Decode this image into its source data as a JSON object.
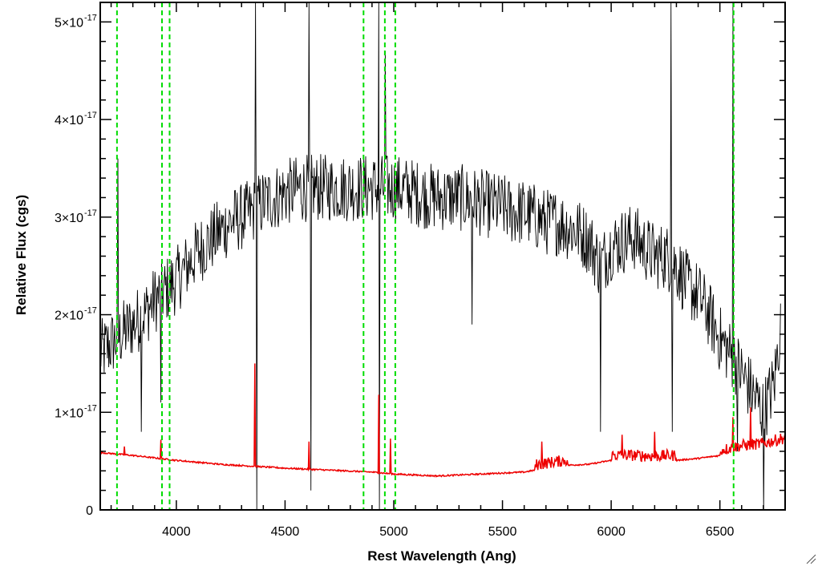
{
  "chart_data": {
    "type": "line",
    "title": "",
    "xlabel": "Rest Wavelength (Ang)",
    "ylabel": "Relative Flux (cgs)",
    "xlim": [
      3650,
      6800
    ],
    "ylim": [
      0,
      5.2e-17
    ],
    "x_ticks": [
      4000,
      4500,
      5000,
      5500,
      6000,
      6500
    ],
    "x_tick_labels": [
      "4000",
      "4500",
      "5000",
      "5500",
      "6000",
      "6500"
    ],
    "y_ticks": [
      0,
      1e-17,
      2e-17,
      3e-17,
      4e-17,
      5e-17
    ],
    "y_tick_labels": [
      {
        "mantissa": "0",
        "exponent": ""
      },
      {
        "mantissa": "1×10",
        "exponent": "-17"
      },
      {
        "mantissa": "2×10",
        "exponent": "-17"
      },
      {
        "mantissa": "3×10",
        "exponent": "-17"
      },
      {
        "mantissa": "4×10",
        "exponent": "-17"
      },
      {
        "mantissa": "5×10",
        "exponent": "-17"
      }
    ],
    "grid": false,
    "series": [
      {
        "role": "spectrum",
        "color": "#000000",
        "x": [
          3650,
          3700,
          3750,
          3800,
          3850,
          3900,
          3950,
          4000,
          4050,
          4100,
          4150,
          4200,
          4250,
          4300,
          4350,
          4400,
          4450,
          4500,
          4550,
          4600,
          4650,
          4700,
          4750,
          4800,
          4850,
          4900,
          4950,
          5000,
          5050,
          5100,
          5150,
          5200,
          5250,
          5300,
          5350,
          5400,
          5450,
          5500,
          5550,
          5600,
          5650,
          5700,
          5750,
          5800,
          5850,
          5900,
          5950,
          6000,
          6050,
          6100,
          6150,
          6200,
          6250,
          6300,
          6350,
          6400,
          6450,
          6500,
          6550,
          6600,
          6650,
          6700,
          6750,
          6780
        ],
        "y": [
          1.6e-17,
          1.7e-17,
          1.8e-17,
          1.9e-17,
          2e-17,
          2.15e-17,
          2.25e-17,
          2.35e-17,
          2.5e-17,
          2.65e-17,
          2.75e-17,
          2.85e-17,
          2.95e-17,
          3e-17,
          3.05e-17,
          3.15e-17,
          3.2e-17,
          3.25e-17,
          3.28e-17,
          3.3e-17,
          3.3e-17,
          3.3e-17,
          3.3e-17,
          3.3e-17,
          3.3e-17,
          3.3e-17,
          3.3e-17,
          3.3e-17,
          3.28e-17,
          3.25e-17,
          3.22e-17,
          3.2e-17,
          3.2e-17,
          3.2e-17,
          3.18e-17,
          3.15e-17,
          3.12e-17,
          3.1e-17,
          3.05e-17,
          3.05e-17,
          3e-17,
          2.95e-17,
          2.95e-17,
          2.9e-17,
          2.85e-17,
          2.75e-17,
          2.5e-17,
          2.7e-17,
          2.75e-17,
          2.8e-17,
          2.7e-17,
          2.6e-17,
          2.6e-17,
          2.5e-17,
          2.3e-17,
          2.2e-17,
          2e-17,
          1.75e-17,
          1.6e-17,
          1.4e-17,
          1.2e-17,
          1e-17,
          1.3e-17,
          1.9e-17
        ],
        "noise": 3.5e-18,
        "spikes": [
          {
            "x": 3730,
            "y": 3.6e-17
          },
          {
            "x": 3840,
            "y": 8e-18
          },
          {
            "x": 3930,
            "y": 1.1e-17
          },
          {
            "x": 4365,
            "y": 5.2e-17
          },
          {
            "x": 4370,
            "y": 0
          },
          {
            "x": 4610,
            "y": 5.2e-17
          },
          {
            "x": 4620,
            "y": 2e-18
          },
          {
            "x": 4930,
            "y": 5.2e-17
          },
          {
            "x": 4935,
            "y": 0
          },
          {
            "x": 4960,
            "y": 4.7e-17
          },
          {
            "x": 5360,
            "y": 1.9e-17
          },
          {
            "x": 5950,
            "y": 8e-18
          },
          {
            "x": 6275,
            "y": 5.2e-17
          },
          {
            "x": 6280,
            "y": 8e-18
          },
          {
            "x": 6560,
            "y": 5.2e-17
          },
          {
            "x": 6580,
            "y": 6e-18
          },
          {
            "x": 6700,
            "y": 0
          }
        ]
      },
      {
        "role": "error",
        "color": "#ee0000",
        "x": [
          3650,
          3800,
          4000,
          4200,
          4350,
          4500,
          4700,
          4900,
          5000,
          5100,
          5200,
          5300,
          5400,
          5500,
          5600,
          5700,
          5800,
          5900,
          6000,
          6100,
          6200,
          6300,
          6400,
          6500,
          6600,
          6700,
          6800
        ],
        "y": [
          5.8e-18,
          5.5e-18,
          5e-18,
          4.6e-18,
          4.4e-18,
          4.2e-18,
          4e-18,
          3.8e-18,
          3.6e-18,
          3.5e-18,
          3.4e-18,
          3.5e-18,
          3.6e-18,
          3.7e-18,
          3.8e-18,
          4.2e-18,
          4.5e-18,
          4.6e-18,
          5e-18,
          5e-18,
          4.9e-18,
          5e-18,
          5.2e-18,
          5.5e-18,
          6e-18,
          6.2e-18,
          6.8e-18
        ],
        "spikes": [
          {
            "x": 3760,
            "y": 6.5e-18
          },
          {
            "x": 3930,
            "y": 7.2e-18
          },
          {
            "x": 4362,
            "y": 1.5e-17
          },
          {
            "x": 4610,
            "y": 7e-18
          },
          {
            "x": 4930,
            "y": 1.18e-17
          },
          {
            "x": 4985,
            "y": 7.3e-18
          },
          {
            "x": 5680,
            "y": 7e-18
          },
          {
            "x": 6050,
            "y": 7.7e-18
          },
          {
            "x": 6200,
            "y": 8e-18
          },
          {
            "x": 6560,
            "y": 9.5e-18
          },
          {
            "x": 6640,
            "y": 1.05e-17
          }
        ]
      }
    ],
    "vlines": [
      {
        "x": 3727,
        "color": "#00dd00",
        "style": "dashed"
      },
      {
        "x": 3934,
        "color": "#00dd00",
        "style": "dashed"
      },
      {
        "x": 3969,
        "color": "#00dd00",
        "style": "dashed"
      },
      {
        "x": 4861,
        "color": "#00dd00",
        "style": "dashed"
      },
      {
        "x": 4959,
        "color": "#00dd00",
        "style": "dashed"
      },
      {
        "x": 5007,
        "color": "#00dd00",
        "style": "dashed"
      },
      {
        "x": 6563,
        "color": "#00dd00",
        "style": "dashed"
      }
    ]
  }
}
